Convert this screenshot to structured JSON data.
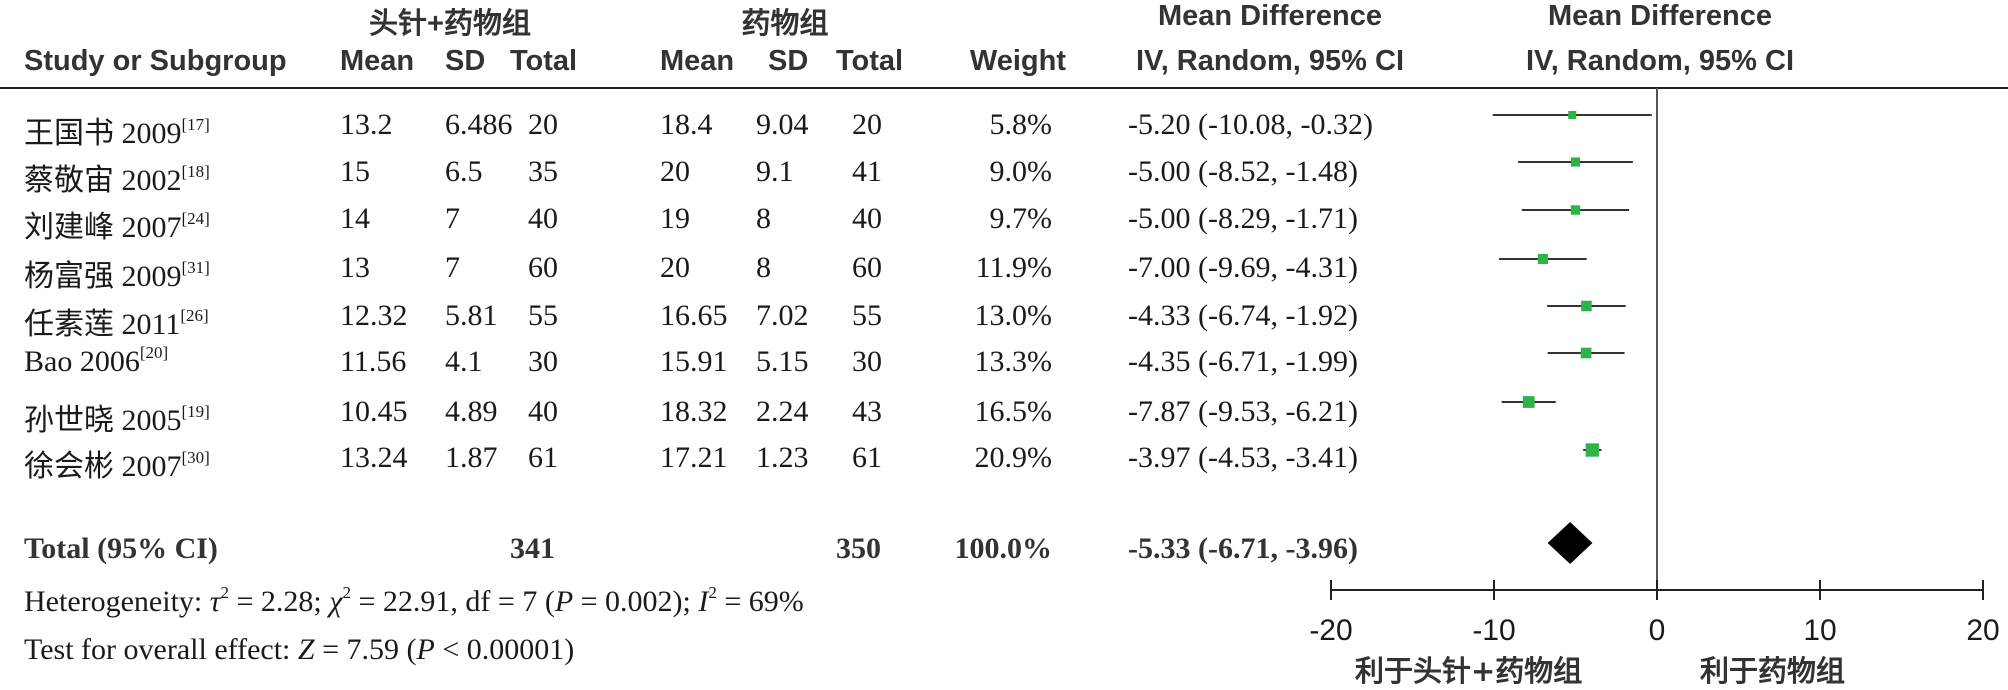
{
  "header": {
    "group_treatment": "头针+药物组",
    "group_control": "药物组",
    "md_title": "Mean Difference",
    "study_col": "Study or Subgroup",
    "mean": "Mean",
    "sd": "SD",
    "total": "Total",
    "weight": "Weight",
    "md_method": "IV, Random, 95% CI",
    "plot_title": "Mean Difference",
    "plot_method": "IV, Random, 95% CI"
  },
  "studies": [
    {
      "name": "王国书 2009",
      "ref": "[17]",
      "t_mean": "13.2",
      "t_sd": "6.486",
      "t_total": "20",
      "c_mean": "18.4",
      "c_sd": "9.04",
      "c_total": "20",
      "weight": "5.8%",
      "ci_text": "-5.20 (-10.08, -0.32)",
      "md": -5.2,
      "lo": -10.08,
      "hi": -0.32,
      "w": 5.8
    },
    {
      "name": "蔡敬宙 2002",
      "ref": "[18]",
      "t_mean": "15",
      "t_sd": "6.5",
      "t_total": "35",
      "c_mean": "20",
      "c_sd": "9.1",
      "c_total": "41",
      "weight": "9.0%",
      "ci_text": "-5.00 (-8.52, -1.48)",
      "md": -5.0,
      "lo": -8.52,
      "hi": -1.48,
      "w": 9.0
    },
    {
      "name": "刘建峰 2007",
      "ref": "[24]",
      "t_mean": "14",
      "t_sd": "7",
      "t_total": "40",
      "c_mean": "19",
      "c_sd": "8",
      "c_total": "40",
      "weight": "9.7%",
      "ci_text": "-5.00 (-8.29, -1.71)",
      "md": -5.0,
      "lo": -8.29,
      "hi": -1.71,
      "w": 9.7
    },
    {
      "name": "杨富强 2009",
      "ref": "[31]",
      "t_mean": "13",
      "t_sd": "7",
      "t_total": "60",
      "c_mean": "20",
      "c_sd": "8",
      "c_total": "60",
      "weight": "11.9%",
      "ci_text": "-7.00 (-9.69, -4.31)",
      "md": -7.0,
      "lo": -9.69,
      "hi": -4.31,
      "w": 11.9
    },
    {
      "name": "任素莲 2011",
      "ref": "[26]",
      "t_mean": "12.32",
      "t_sd": "5.81",
      "t_total": "55",
      "c_mean": "16.65",
      "c_sd": "7.02",
      "c_total": "55",
      "weight": "13.0%",
      "ci_text": "-4.33 (-6.74, -1.92)",
      "md": -4.33,
      "lo": -6.74,
      "hi": -1.92,
      "w": 13.0
    },
    {
      "name": "Bao 2006",
      "ref": "[20]",
      "t_mean": "11.56",
      "t_sd": "4.1",
      "t_total": "30",
      "c_mean": "15.91",
      "c_sd": "5.15",
      "c_total": "30",
      "weight": "13.3%",
      "ci_text": "-4.35 (-6.71, -1.99)",
      "md": -4.35,
      "lo": -6.71,
      "hi": -1.99,
      "w": 13.3
    },
    {
      "name": "孙世晓 2005",
      "ref": "[19]",
      "t_mean": "10.45",
      "t_sd": "4.89",
      "t_total": "40",
      "c_mean": "18.32",
      "c_sd": "2.24",
      "c_total": "43",
      "weight": "16.5%",
      "ci_text": "-7.87 (-9.53, -6.21)",
      "md": -7.87,
      "lo": -9.53,
      "hi": -6.21,
      "w": 16.5
    },
    {
      "name": "徐会彬 2007",
      "ref": "[30]",
      "t_mean": "13.24",
      "t_sd": "1.87",
      "t_total": "61",
      "c_mean": "17.21",
      "c_sd": "1.23",
      "c_total": "61",
      "weight": "20.9%",
      "ci_text": "-3.97 (-4.53, -3.41)",
      "md": -3.97,
      "lo": -4.53,
      "hi": -3.41,
      "w": 20.9
    }
  ],
  "total": {
    "label": "Total (95% CI)",
    "t_total": "341",
    "c_total": "350",
    "weight": "100.0%",
    "ci_text": "-5.33 (-6.71, -3.96)",
    "md": -5.33,
    "lo": -6.71,
    "hi": -3.96
  },
  "footer": {
    "het_prefix": "Heterogeneity: ",
    "tau": "τ",
    "tau_val": " = 2.28; ",
    "chi": "χ",
    "chi_val": " = 22.91, df = 7 (",
    "p": "P",
    "het_p": " = 0.002); ",
    "i": "I",
    "i_val": " = 69%",
    "sq": "2",
    "overall_prefix": "Test for overall effect: ",
    "z": "Z",
    "z_val": " = 7.59 (",
    "overall_p": " < 0.00001)"
  },
  "axis": {
    "ticks": [
      -20,
      -10,
      0,
      10,
      20
    ],
    "tick_labels": [
      "-20",
      "-10",
      "0",
      "10",
      "20"
    ],
    "favors_left": "利于头针+药物组",
    "favors_right": "利于药物组"
  },
  "colors": {
    "marker": "#2db34a",
    "diamond": "#000000",
    "line": "#333333"
  },
  "chart_data": {
    "type": "forest",
    "categories": [
      "王国书 2009",
      "蔡敬宙 2002",
      "刘建峰 2007",
      "杨富强 2009",
      "任素莲 2011",
      "Bao 2006",
      "孙世晓 2005",
      "徐会彬 2007"
    ],
    "values": [
      -5.2,
      -5.0,
      -5.0,
      -7.0,
      -4.33,
      -4.35,
      -7.87,
      -3.97
    ],
    "ci_low": [
      -10.08,
      -8.52,
      -8.29,
      -9.69,
      -6.74,
      -6.71,
      -9.53,
      -4.53
    ],
    "ci_high": [
      -0.32,
      -1.48,
      -1.71,
      -4.31,
      -1.92,
      -1.99,
      -6.21,
      -3.41
    ],
    "weights": [
      5.8,
      9.0,
      9.7,
      11.9,
      13.0,
      13.3,
      16.5,
      20.9
    ],
    "pooled": {
      "value": -5.33,
      "ci_low": -6.71,
      "ci_high": -3.96
    },
    "xlim": [
      -20,
      20
    ],
    "xlabel": "",
    "title": ""
  }
}
